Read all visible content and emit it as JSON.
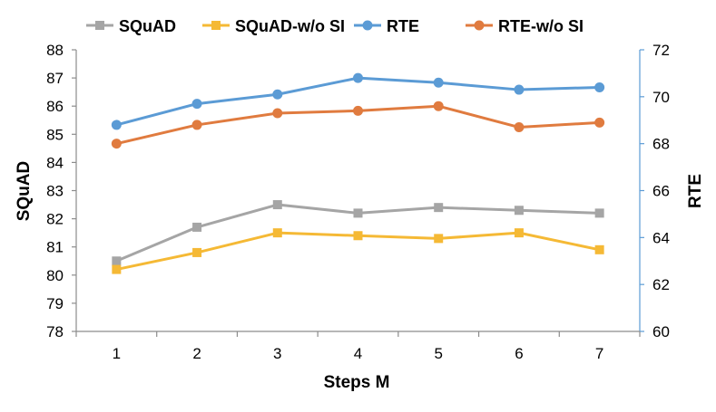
{
  "chart_data": {
    "type": "line",
    "title": "",
    "xlabel": "Steps M",
    "ylabel_left": "SQuAD",
    "ylabel_right": "RTE",
    "x": [
      1,
      2,
      3,
      4,
      5,
      6,
      7
    ],
    "x_tick_labels": [
      "1",
      "2",
      "3",
      "4",
      "5",
      "6",
      "7"
    ],
    "y_left": {
      "range": [
        78,
        88
      ],
      "ticks": [
        78,
        79,
        80,
        81,
        82,
        83,
        84,
        85,
        86,
        87,
        88
      ],
      "tick_labels": [
        "78",
        "79",
        "80",
        "81",
        "82",
        "83",
        "84",
        "85",
        "86",
        "87",
        "88"
      ]
    },
    "y_right": {
      "range": [
        60,
        72
      ],
      "ticks": [
        60,
        62,
        64,
        66,
        68,
        70,
        72
      ],
      "tick_labels": [
        "60",
        "62",
        "64",
        "66",
        "68",
        "70",
        "72"
      ]
    },
    "grid": false,
    "legend": "top",
    "series": [
      {
        "name": "SQuAD",
        "axis": "left",
        "marker": "square",
        "color": "#a5a5a5",
        "values": [
          80.5,
          81.7,
          82.5,
          82.2,
          82.4,
          82.3,
          82.2
        ]
      },
      {
        "name": "SQuAD-w/o SI",
        "axis": "left",
        "marker": "square",
        "color": "#f5b935",
        "values": [
          80.2,
          80.8,
          81.5,
          81.4,
          81.3,
          81.5,
          80.9
        ]
      },
      {
        "name": "RTE",
        "axis": "right",
        "marker": "circle",
        "color": "#5b9bd5",
        "values": [
          68.8,
          69.7,
          70.1,
          70.8,
          70.6,
          70.3,
          70.4
        ]
      },
      {
        "name": "RTE-w/o SI",
        "axis": "right",
        "marker": "circle",
        "color": "#e07b3f",
        "values": [
          68.0,
          68.8,
          69.3,
          69.4,
          69.6,
          68.7,
          68.9
        ]
      }
    ]
  }
}
